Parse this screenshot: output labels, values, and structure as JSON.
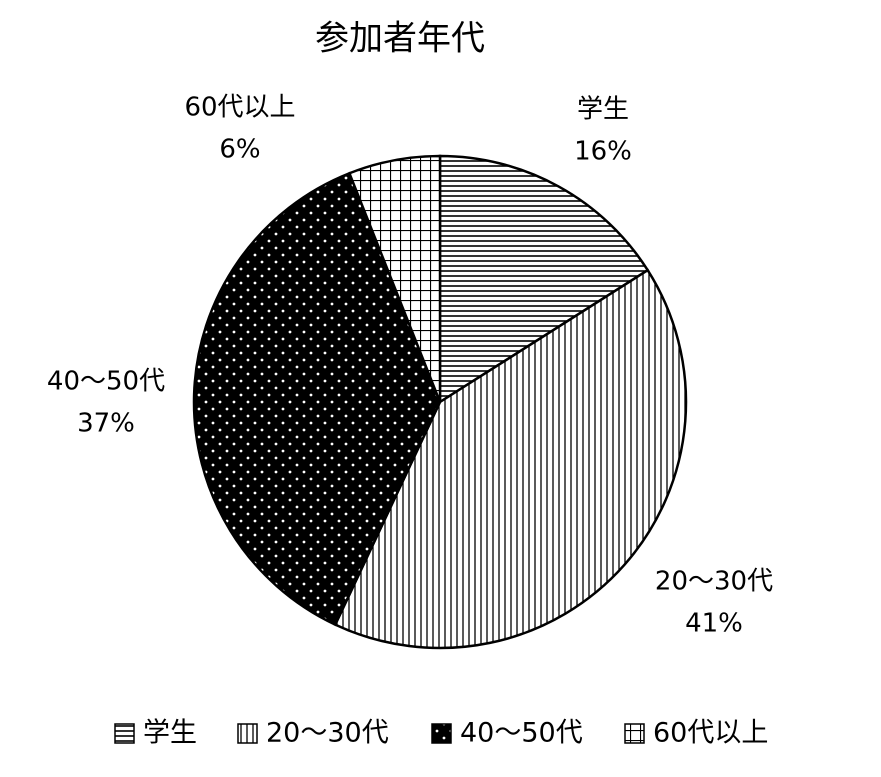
{
  "chart_data": {
    "type": "pie",
    "title": "参加者年代",
    "categories": [
      "学生",
      "20〜30代",
      "40〜50代",
      "60代以上"
    ],
    "values": [
      16,
      41,
      37,
      6
    ],
    "value_labels": [
      "16%",
      "41%",
      "37%",
      "6%"
    ],
    "patterns": [
      "horizontal",
      "vertical",
      "dots",
      "grid"
    ],
    "legend": "bottom"
  }
}
